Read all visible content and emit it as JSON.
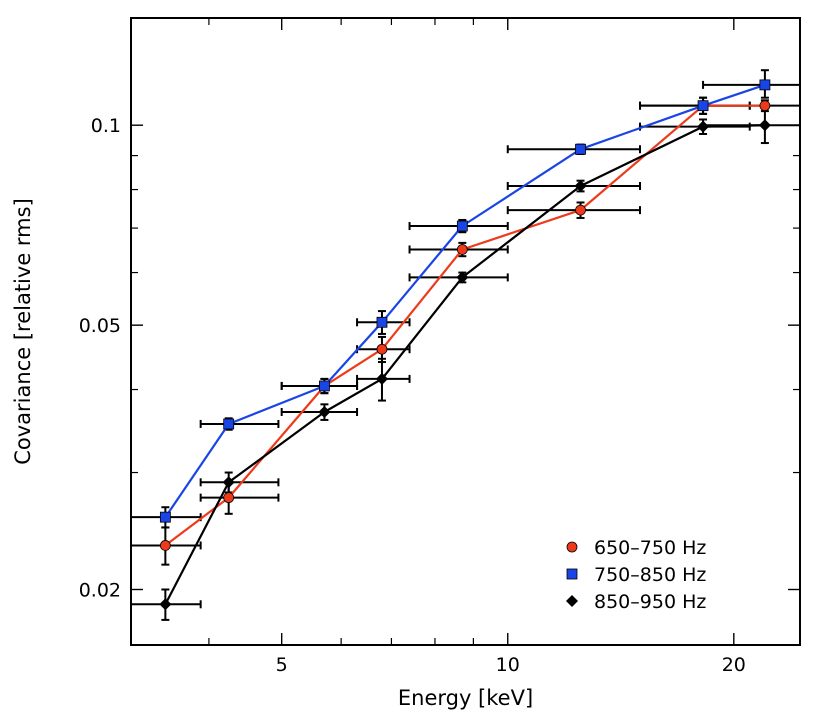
{
  "chart_data": {
    "type": "scatter",
    "title": "",
    "xlabel": "Energy [keV]",
    "ylabel": "Covariance [relative rms]",
    "xscale": "log",
    "yscale": "log",
    "xlim": [
      3.15,
      24.5
    ],
    "ylim": [
      0.0165,
      0.145
    ],
    "x_ticks": [
      {
        "value": 5,
        "label": "5"
      },
      {
        "value": 10,
        "label": "10"
      },
      {
        "value": 20,
        "label": "20"
      }
    ],
    "x_minor_ticks": [
      4,
      6,
      7,
      8,
      9
    ],
    "y_ticks": [
      {
        "value": 0.02,
        "label": "0.02"
      },
      {
        "value": 0.05,
        "label": "0.05"
      },
      {
        "value": 0.1,
        "label": "0.1"
      }
    ],
    "y_minor_ticks": [
      0.03,
      0.04,
      0.06,
      0.07,
      0.08,
      0.09
    ],
    "grid": false,
    "legend_position": "bottom-right",
    "series": [
      {
        "name": "650–750 Hz",
        "color": "#ee3a1a",
        "marker": "circle",
        "points": [
          {
            "x": 3.5,
            "xlo": 3.15,
            "xhi": 3.9,
            "y": 0.0233,
            "ylo": 0.0218,
            "yhi": 0.0248
          },
          {
            "x": 4.25,
            "xlo": 3.9,
            "xhi": 4.95,
            "y": 0.0275,
            "ylo": 0.026,
            "yhi": 0.029
          },
          {
            "x": 5.7,
            "xlo": 5.0,
            "xhi": 6.3,
            "y": 0.0405,
            "ylo": 0.0395,
            "yhi": 0.0415
          },
          {
            "x": 6.8,
            "xlo": 6.3,
            "xhi": 7.4,
            "y": 0.046,
            "ylo": 0.044,
            "yhi": 0.048
          },
          {
            "x": 8.7,
            "xlo": 7.4,
            "xhi": 10.0,
            "y": 0.065,
            "ylo": 0.0635,
            "yhi": 0.0665
          },
          {
            "x": 12.5,
            "xlo": 10.0,
            "xhi": 15.0,
            "y": 0.0745,
            "ylo": 0.0725,
            "yhi": 0.0765
          },
          {
            "x": 18.2,
            "xlo": 15.0,
            "xhi": 21.0,
            "y": 0.107,
            "ylo": 0.104,
            "yhi": 0.11
          },
          {
            "x": 22.0,
            "xlo": 18.2,
            "xhi": 24.5,
            "y": 0.107,
            "ylo": 0.105,
            "yhi": 0.109
          }
        ]
      },
      {
        "name": "750–850 Hz",
        "color": "#1a45e6",
        "marker": "square",
        "points": [
          {
            "x": 3.5,
            "xlo": 3.15,
            "xhi": 3.9,
            "y": 0.0257,
            "ylo": 0.0248,
            "yhi": 0.0266
          },
          {
            "x": 4.25,
            "xlo": 3.9,
            "xhi": 4.95,
            "y": 0.0355,
            "ylo": 0.0348,
            "yhi": 0.0362
          },
          {
            "x": 5.7,
            "xlo": 5.0,
            "xhi": 6.3,
            "y": 0.0405,
            "ylo": 0.0395,
            "yhi": 0.0415
          },
          {
            "x": 6.8,
            "xlo": 6.3,
            "xhi": 7.4,
            "y": 0.0505,
            "ylo": 0.0485,
            "yhi": 0.0525
          },
          {
            "x": 8.7,
            "xlo": 7.4,
            "xhi": 10.0,
            "y": 0.0705,
            "ylo": 0.069,
            "yhi": 0.072
          },
          {
            "x": 12.5,
            "xlo": 10.0,
            "xhi": 15.0,
            "y": 0.092,
            "ylo": 0.0905,
            "yhi": 0.0935
          },
          {
            "x": 18.2,
            "xlo": 15.0,
            "xhi": 21.0,
            "y": 0.107,
            "ylo": 0.104,
            "yhi": 0.11
          },
          {
            "x": 22.0,
            "xlo": 18.2,
            "xhi": 24.5,
            "y": 0.115,
            "ylo": 0.11,
            "yhi": 0.121
          }
        ]
      },
      {
        "name": "850–950 Hz",
        "color": "#000000",
        "marker": "diamond",
        "points": [
          {
            "x": 3.5,
            "xlo": 3.15,
            "xhi": 3.9,
            "y": 0.019,
            "ylo": 0.018,
            "yhi": 0.02
          },
          {
            "x": 4.25,
            "xlo": 3.9,
            "xhi": 4.95,
            "y": 0.029,
            "ylo": 0.028,
            "yhi": 0.03
          },
          {
            "x": 5.7,
            "xlo": 5.0,
            "xhi": 6.3,
            "y": 0.037,
            "ylo": 0.036,
            "yhi": 0.038
          },
          {
            "x": 6.8,
            "xlo": 6.3,
            "xhi": 7.4,
            "y": 0.0415,
            "ylo": 0.0385,
            "yhi": 0.0445
          },
          {
            "x": 8.7,
            "xlo": 7.4,
            "xhi": 10.0,
            "y": 0.059,
            "ylo": 0.058,
            "yhi": 0.06
          },
          {
            "x": 12.5,
            "xlo": 10.0,
            "xhi": 15.0,
            "y": 0.081,
            "ylo": 0.0795,
            "yhi": 0.0825
          },
          {
            "x": 18.2,
            "xlo": 15.0,
            "xhi": 21.0,
            "y": 0.0995,
            "ylo": 0.097,
            "yhi": 0.102
          },
          {
            "x": 22.0,
            "xlo": 18.2,
            "xhi": 24.5,
            "y": 0.1,
            "ylo": 0.094,
            "yhi": 0.106
          }
        ]
      }
    ]
  }
}
